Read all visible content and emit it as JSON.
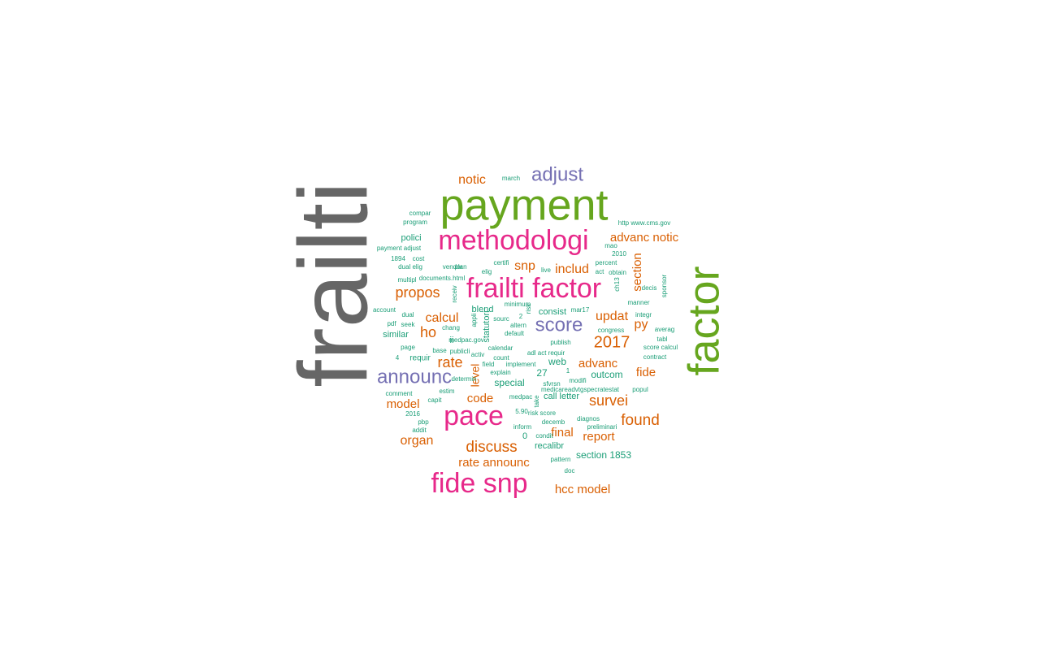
{
  "colors": {
    "gray": "#666666",
    "green": "#66a61e",
    "pink": "#e7298a",
    "purple": "#7570b3",
    "orange": "#d95f02",
    "teal": "#1b9e77"
  },
  "words": [
    {
      "text": "frailti",
      "color": "gray"
    },
    {
      "text": "payment",
      "color": "green"
    },
    {
      "text": "factor",
      "color": "green"
    },
    {
      "text": "methodologi",
      "color": "pink"
    },
    {
      "text": "frailti factor",
      "color": "pink"
    },
    {
      "text": "pace",
      "color": "pink"
    },
    {
      "text": "fide snp",
      "color": "pink"
    },
    {
      "text": "adjust",
      "color": "purple"
    },
    {
      "text": "score",
      "color": "purple"
    },
    {
      "text": "announc",
      "color": "purple"
    },
    {
      "text": "notic",
      "color": "orange"
    },
    {
      "text": "propos",
      "color": "orange"
    },
    {
      "text": "snp",
      "color": "orange"
    },
    {
      "text": "includ",
      "color": "orange"
    },
    {
      "text": "advanc notic",
      "color": "orange"
    },
    {
      "text": "section",
      "color": "orange"
    },
    {
      "text": "updat",
      "color": "orange"
    },
    {
      "text": "py",
      "color": "orange"
    },
    {
      "text": "calcul",
      "color": "orange"
    },
    {
      "text": "ho",
      "color": "orange"
    },
    {
      "text": "2017",
      "color": "orange"
    },
    {
      "text": "rate",
      "color": "orange"
    },
    {
      "text": "level",
      "color": "orange"
    },
    {
      "text": "advanc",
      "color": "orange"
    },
    {
      "text": "fide",
      "color": "orange"
    },
    {
      "text": "survei",
      "color": "orange"
    },
    {
      "text": "code",
      "color": "orange"
    },
    {
      "text": "model",
      "color": "orange"
    },
    {
      "text": "found",
      "color": "orange"
    },
    {
      "text": "discuss",
      "color": "orange"
    },
    {
      "text": "final",
      "color": "orange"
    },
    {
      "text": "report",
      "color": "orange"
    },
    {
      "text": "organ",
      "color": "orange"
    },
    {
      "text": "rate announc",
      "color": "orange"
    },
    {
      "text": "hcc model",
      "color": "orange"
    },
    {
      "text": "march",
      "color": "teal"
    },
    {
      "text": "compar",
      "color": "teal"
    },
    {
      "text": "program",
      "color": "teal"
    },
    {
      "text": "http www.cms.gov",
      "color": "teal"
    },
    {
      "text": "polici",
      "color": "teal"
    },
    {
      "text": "payment adjust",
      "color": "teal"
    },
    {
      "text": "mao",
      "color": "teal"
    },
    {
      "text": "2010",
      "color": "teal"
    },
    {
      "text": "1894",
      "color": "teal"
    },
    {
      "text": "cost",
      "color": "teal"
    },
    {
      "text": "vendor",
      "color": "teal"
    },
    {
      "text": "certifi",
      "color": "teal"
    },
    {
      "text": "percent",
      "color": "teal"
    },
    {
      "text": "dual elig",
      "color": "teal"
    },
    {
      "text": "plan",
      "color": "teal"
    },
    {
      "text": "elig",
      "color": "teal"
    },
    {
      "text": "live",
      "color": "teal"
    },
    {
      "text": "act",
      "color": "teal"
    },
    {
      "text": "obtain",
      "color": "teal"
    },
    {
      "text": "multipl",
      "color": "teal"
    },
    {
      "text": "documents.html",
      "color": "teal"
    },
    {
      "text": "sponsor",
      "color": "teal"
    },
    {
      "text": "ch13",
      "color": "teal"
    },
    {
      "text": "decis",
      "color": "teal"
    },
    {
      "text": "receiv",
      "color": "teal"
    },
    {
      "text": "manner",
      "color": "teal"
    },
    {
      "text": "account",
      "color": "teal"
    },
    {
      "text": "blend",
      "color": "teal"
    },
    {
      "text": "consist",
      "color": "teal"
    },
    {
      "text": "mar17",
      "color": "teal"
    },
    {
      "text": "integr",
      "color": "teal"
    },
    {
      "text": "dual",
      "color": "teal"
    },
    {
      "text": "sourc",
      "color": "teal"
    },
    {
      "text": "appli",
      "color": "teal"
    },
    {
      "text": "risk",
      "color": "teal"
    },
    {
      "text": "pdf",
      "color": "teal"
    },
    {
      "text": "seek",
      "color": "teal"
    },
    {
      "text": "chang",
      "color": "teal"
    },
    {
      "text": "altern",
      "color": "teal"
    },
    {
      "text": "congress",
      "color": "teal"
    },
    {
      "text": "averag",
      "color": "teal"
    },
    {
      "text": "similar",
      "color": "teal"
    },
    {
      "text": "statutori",
      "color": "teal"
    },
    {
      "text": "default",
      "color": "teal"
    },
    {
      "text": "tabl",
      "color": "teal"
    },
    {
      "text": "ii",
      "color": "teal"
    },
    {
      "text": "medpac.gov",
      "color": "teal"
    },
    {
      "text": "publish",
      "color": "teal"
    },
    {
      "text": "score calcul",
      "color": "teal"
    },
    {
      "text": "page",
      "color": "teal"
    },
    {
      "text": "base",
      "color": "teal"
    },
    {
      "text": "publicli",
      "color": "teal"
    },
    {
      "text": "calendar",
      "color": "teal"
    },
    {
      "text": "adl act requir",
      "color": "teal"
    },
    {
      "text": "contract",
      "color": "teal"
    },
    {
      "text": "4",
      "color": "teal"
    },
    {
      "text": "requir",
      "color": "teal"
    },
    {
      "text": "activ",
      "color": "teal"
    },
    {
      "text": "count",
      "color": "teal"
    },
    {
      "text": "web",
      "color": "teal"
    },
    {
      "text": "field",
      "color": "teal"
    },
    {
      "text": "implement",
      "color": "teal"
    },
    {
      "text": "explain",
      "color": "teal"
    },
    {
      "text": "outcom",
      "color": "teal"
    },
    {
      "text": "27",
      "color": "teal"
    },
    {
      "text": "1",
      "color": "teal"
    },
    {
      "text": "determin",
      "color": "teal"
    },
    {
      "text": "special",
      "color": "teal"
    },
    {
      "text": "sfvrsn",
      "color": "teal"
    },
    {
      "text": "modifi",
      "color": "teal"
    },
    {
      "text": "comment",
      "color": "teal"
    },
    {
      "text": "estim",
      "color": "teal"
    },
    {
      "text": "medicareadvtgspecratestat",
      "color": "teal"
    },
    {
      "text": "popul",
      "color": "teal"
    },
    {
      "text": "capit",
      "color": "teal"
    },
    {
      "text": "medpac",
      "color": "teal"
    },
    {
      "text": "call letter",
      "color": "teal"
    },
    {
      "text": "take",
      "color": "teal"
    },
    {
      "text": "2016",
      "color": "teal"
    },
    {
      "text": "5.90",
      "color": "teal"
    },
    {
      "text": "risk score",
      "color": "teal"
    },
    {
      "text": "diagnos",
      "color": "teal"
    },
    {
      "text": "pbp",
      "color": "teal"
    },
    {
      "text": "inform",
      "color": "teal"
    },
    {
      "text": "decemb",
      "color": "teal"
    },
    {
      "text": "preliminari",
      "color": "teal"
    },
    {
      "text": "addit",
      "color": "teal"
    },
    {
      "text": "0",
      "color": "teal"
    },
    {
      "text": "condit",
      "color": "teal"
    },
    {
      "text": "recalibr",
      "color": "teal"
    },
    {
      "text": "pattern",
      "color": "teal"
    },
    {
      "text": "section 1853",
      "color": "teal"
    },
    {
      "text": "doc",
      "color": "teal"
    },
    {
      "text": "minimum",
      "color": "teal"
    },
    {
      "text": "2",
      "color": "teal"
    }
  ]
}
